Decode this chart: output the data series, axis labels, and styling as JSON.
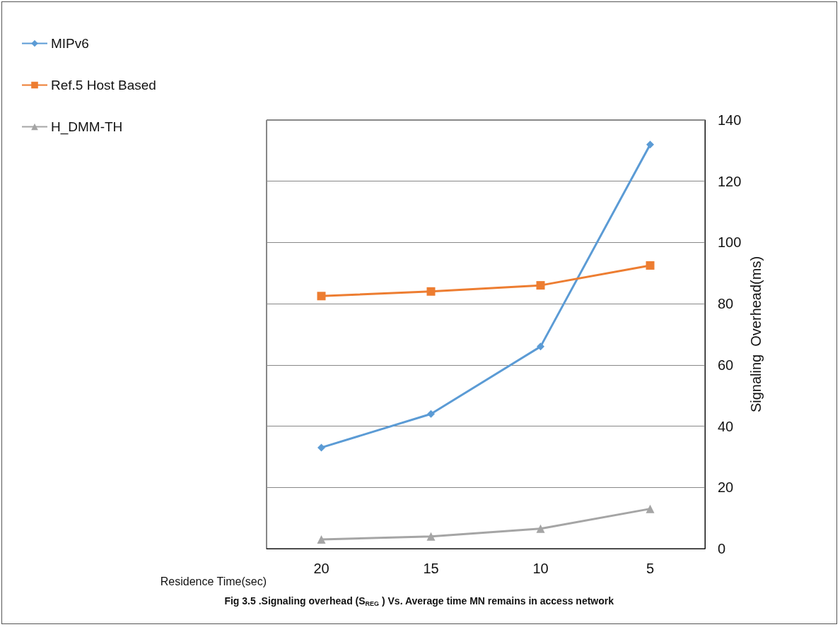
{
  "chart_data": {
    "type": "line",
    "xlabel": "Residence Time(sec)",
    "ylabel": "Signaling  Overhead(ms)",
    "categories": [
      "20",
      "15",
      "10",
      "5"
    ],
    "series": [
      {
        "name": "MIPv6",
        "color": "#5b9bd5",
        "marker": "diamond",
        "values": [
          33,
          44,
          66,
          132
        ]
      },
      {
        "name": "Ref.5 Host Based",
        "color": "#ed7d31",
        "marker": "square",
        "values": [
          82.5,
          84,
          86,
          92.5
        ]
      },
      {
        "name": "H_DMM-TH",
        "color": "#a5a5a5",
        "marker": "triangle",
        "values": [
          3,
          4,
          6.5,
          13
        ]
      }
    ],
    "ylim": [
      0,
      140
    ],
    "yticks": [
      0,
      20,
      40,
      60,
      80,
      100,
      120,
      140
    ],
    "grid": "y",
    "legend": "top left",
    "annotations": [
      "Fig 3.5 .Signaling overhead (S$_{REG}$ ) Vs. Average time MN remains in access network"
    ]
  }
}
